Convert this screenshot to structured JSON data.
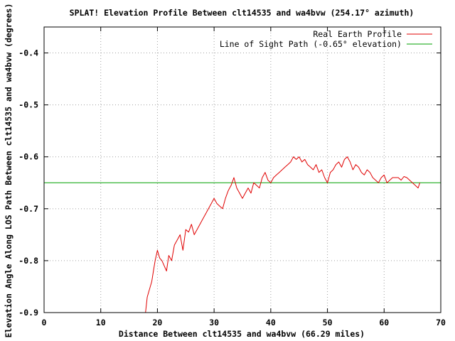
{
  "chart_data": {
    "type": "line",
    "title": "SPLAT! Elevation Profile Between clt14535 and wa4bvw (254.17° azimuth)",
    "xlabel": "Distance Between clt14535 and wa4bvw (66.29 miles)",
    "ylabel": "Elevation Angle Along LOS Path Between clt14535 and wa4bvw (degrees)",
    "xlim": [
      0,
      70
    ],
    "ylim": [
      -0.9,
      -0.35
    ],
    "x_ticks": [
      "0",
      "10",
      "20",
      "30",
      "40",
      "50",
      "60",
      "70"
    ],
    "y_ticks": [
      "-0.9",
      "-0.8",
      "-0.7",
      "-0.6",
      "-0.5",
      "-0.4"
    ],
    "x_tick_values": [
      0,
      10,
      20,
      30,
      40,
      50,
      60,
      70
    ],
    "y_tick_values": [
      -0.9,
      -0.8,
      -0.7,
      -0.6,
      -0.5,
      -0.4
    ],
    "grid": true,
    "legend_position": "top-right",
    "series": [
      {
        "name": "Real Earth Profile",
        "color": "#e00000",
        "x": [
          17.9,
          18.2,
          18.6,
          19.0,
          19.3,
          19.6,
          20.0,
          20.4,
          20.8,
          21.2,
          21.6,
          22.0,
          22.5,
          23.0,
          23.5,
          24.0,
          24.5,
          25.0,
          25.5,
          26.0,
          26.5,
          27.0,
          27.5,
          28.0,
          28.5,
          29.0,
          29.5,
          30.0,
          30.5,
          31.0,
          31.5,
          32.0,
          32.5,
          33.0,
          33.5,
          34.0,
          34.5,
          35.0,
          35.5,
          36.0,
          36.5,
          37.0,
          37.5,
          38.0,
          38.5,
          39.0,
          39.5,
          40.0,
          40.5,
          41.0,
          41.5,
          42.0,
          42.5,
          43.0,
          43.5,
          44.0,
          44.5,
          45.0,
          45.5,
          46.0,
          46.5,
          47.0,
          47.5,
          48.0,
          48.5,
          49.0,
          49.5,
          50.0,
          50.5,
          51.0,
          51.5,
          52.0,
          52.5,
          53.0,
          53.5,
          54.0,
          54.5,
          55.0,
          55.5,
          56.0,
          56.5,
          57.0,
          57.5,
          58.0,
          58.5,
          59.0,
          59.5,
          60.0,
          60.5,
          61.0,
          61.5,
          62.0,
          62.5,
          63.0,
          63.5,
          64.0,
          64.5,
          65.0,
          65.5,
          66.0,
          66.3
        ],
        "y": [
          -0.9,
          -0.87,
          -0.855,
          -0.84,
          -0.82,
          -0.8,
          -0.78,
          -0.795,
          -0.8,
          -0.81,
          -0.82,
          -0.79,
          -0.8,
          -0.77,
          -0.76,
          -0.75,
          -0.78,
          -0.74,
          -0.745,
          -0.73,
          -0.75,
          -0.74,
          -0.73,
          -0.72,
          -0.71,
          -0.7,
          -0.69,
          -0.68,
          -0.69,
          -0.695,
          -0.7,
          -0.68,
          -0.665,
          -0.655,
          -0.64,
          -0.66,
          -0.67,
          -0.68,
          -0.67,
          -0.66,
          -0.67,
          -0.65,
          -0.655,
          -0.66,
          -0.64,
          -0.63,
          -0.645,
          -0.65,
          -0.64,
          -0.635,
          -0.63,
          -0.625,
          -0.62,
          -0.615,
          -0.61,
          -0.6,
          -0.605,
          -0.6,
          -0.61,
          -0.605,
          -0.615,
          -0.62,
          -0.625,
          -0.615,
          -0.63,
          -0.625,
          -0.64,
          -0.65,
          -0.63,
          -0.625,
          -0.615,
          -0.61,
          -0.62,
          -0.605,
          -0.6,
          -0.61,
          -0.625,
          -0.615,
          -0.62,
          -0.63,
          -0.635,
          -0.625,
          -0.63,
          -0.64,
          -0.645,
          -0.65,
          -0.64,
          -0.635,
          -0.65,
          -0.645,
          -0.64,
          -0.64,
          -0.64,
          -0.645,
          -0.638,
          -0.64,
          -0.645,
          -0.65,
          -0.655,
          -0.66,
          -0.65
        ]
      },
      {
        "name": "Line of Sight Path (-0.65° elevation)",
        "color": "#00a000",
        "x": [
          0,
          70
        ],
        "y": [
          -0.65,
          -0.65
        ]
      }
    ]
  }
}
